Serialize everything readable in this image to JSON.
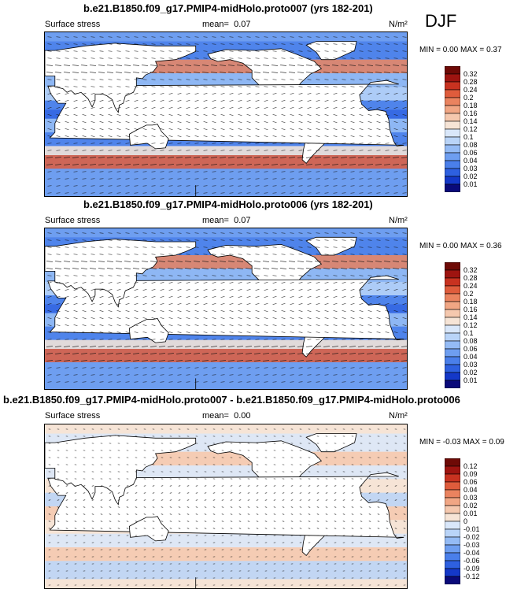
{
  "season": "DJF",
  "panels": [
    {
      "title": "b.e21.B1850.f09_g17.PMIP4-midHolo.proto007 (yrs 182-201)",
      "left_label": "Surface stress",
      "mean_label": "mean=",
      "mean_value": "0.07",
      "units": "N/m²",
      "min_label": "MIN =",
      "min_value": "0.00",
      "max_label": "MAX =",
      "max_value": "0.37",
      "colorbar_ticks": [
        "0.32",
        "0.28",
        "0.24",
        "0.2",
        "0.18",
        "0.16",
        "0.14",
        "0.12",
        "0.1",
        "0.08",
        "0.06",
        "0.04",
        "0.03",
        "0.02",
        "0.01"
      ],
      "colors": [
        "#0a0a7a",
        "#1438c8",
        "#2e60e0",
        "#4a7fea",
        "#6e9ef0",
        "#94bbf5",
        "#b9d4f8",
        "#d9e7fa",
        "#f6e4d6",
        "#f5c8ae",
        "#f1a684",
        "#ea835f",
        "#df5c3c",
        "#c83220",
        "#9e1410",
        "#6e0a06"
      ]
    },
    {
      "title": "b.e21.B1850.f09_g17.PMIP4-midHolo.proto006 (yrs 182-201)",
      "left_label": "Surface stress",
      "mean_label": "mean=",
      "mean_value": "0.07",
      "units": "N/m²",
      "min_label": "MIN =",
      "min_value": "0.00",
      "max_label": "MAX =",
      "max_value": "0.36",
      "colorbar_ticks": [
        "0.32",
        "0.28",
        "0.24",
        "0.2",
        "0.18",
        "0.16",
        "0.14",
        "0.12",
        "0.1",
        "0.08",
        "0.06",
        "0.04",
        "0.03",
        "0.02",
        "0.01"
      ],
      "colors": [
        "#0a0a7a",
        "#1438c8",
        "#2e60e0",
        "#4a7fea",
        "#6e9ef0",
        "#94bbf5",
        "#b9d4f8",
        "#d9e7fa",
        "#f6e4d6",
        "#f5c8ae",
        "#f1a684",
        "#ea835f",
        "#df5c3c",
        "#c83220",
        "#9e1410",
        "#6e0a06"
      ]
    },
    {
      "title": "b.e21.B1850.f09_g17.PMIP4-midHolo.proto007 - b.e21.B1850.f09_g17.PMIP4-midHolo.proto006",
      "left_label": "Surface stress",
      "mean_label": "mean=",
      "mean_value": "0.00",
      "units": "N/m²",
      "min_label": "MIN =",
      "min_value": "-0.03",
      "max_label": "MAX =",
      "max_value": "0.09",
      "colorbar_ticks": [
        "0.12",
        "0.09",
        "0.06",
        "0.04",
        "0.03",
        "0.02",
        "0.01",
        "0",
        "-0.01",
        "-0.02",
        "-0.03",
        "-0.04",
        "-0.06",
        "-0.09",
        "-0.12"
      ],
      "colors": [
        "#0a0a7a",
        "#1438c8",
        "#2e60e0",
        "#4a7fea",
        "#6e9ef0",
        "#94bbf5",
        "#b9d4f8",
        "#d9e7fa",
        "#f6e4d6",
        "#f5c8ae",
        "#f1a684",
        "#ea835f",
        "#df5c3c",
        "#c83220",
        "#9e1410",
        "#6e0a06"
      ]
    }
  ],
  "chart_data": [
    {
      "type": "heatmap",
      "title": "b.e21.B1850.f09_g17.PMIP4-midHolo.proto007 (yrs 182-201)",
      "variable": "Surface stress",
      "units": "N/m²",
      "mean": 0.07,
      "min": 0.0,
      "max": 0.37,
      "colorbar_levels": [
        0.01,
        0.02,
        0.03,
        0.04,
        0.06,
        0.08,
        0.1,
        0.12,
        0.14,
        0.16,
        0.18,
        0.2,
        0.24,
        0.28,
        0.32
      ]
    },
    {
      "type": "heatmap",
      "title": "b.e21.B1850.f09_g17.PMIP4-midHolo.proto006 (yrs 182-201)",
      "variable": "Surface stress",
      "units": "N/m²",
      "mean": 0.07,
      "min": 0.0,
      "max": 0.36,
      "colorbar_levels": [
        0.01,
        0.02,
        0.03,
        0.04,
        0.06,
        0.08,
        0.1,
        0.12,
        0.14,
        0.16,
        0.18,
        0.2,
        0.24,
        0.28,
        0.32
      ]
    },
    {
      "type": "heatmap",
      "title": "b.e21.B1850.f09_g17.PMIP4-midHolo.proto007 - b.e21.B1850.f09_g17.PMIP4-midHolo.proto006",
      "variable": "Surface stress",
      "units": "N/m²",
      "mean": 0.0,
      "min": -0.03,
      "max": 0.09,
      "colorbar_levels": [
        -0.12,
        -0.09,
        -0.06,
        -0.04,
        -0.03,
        -0.02,
        -0.01,
        0,
        0.01,
        0.02,
        0.03,
        0.04,
        0.06,
        0.09,
        0.12
      ]
    }
  ]
}
